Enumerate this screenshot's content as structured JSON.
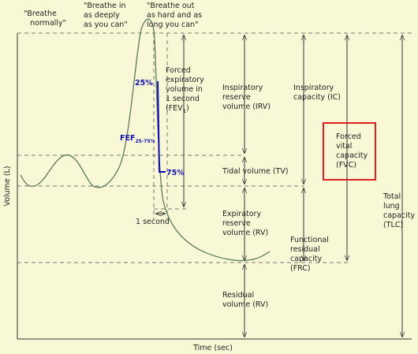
{
  "prompts": {
    "normal": [
      "\"Breathe",
      "normally\""
    ],
    "inhale": [
      "\"Breathe in",
      "as deeply",
      "as you can\""
    ],
    "exhale": [
      "\"Breathe out",
      "as hard and as",
      "long you can\""
    ]
  },
  "fev1": {
    "lines": [
      "Forced",
      "expiratory",
      "volume in",
      "1 second"
    ],
    "abbr": "(FEV",
    "sub": "1",
    "close": ")"
  },
  "fef": {
    "main": "FEF",
    "sub": "25-75%",
    "start": "25%",
    "end": "75%"
  },
  "one_second": "1 second",
  "volumes": {
    "irv": [
      "Inspiratory",
      "reserve",
      "volume (IRV)"
    ],
    "tv": [
      "Tidal volume (TV)"
    ],
    "erv": [
      "Expiratory",
      "reserve",
      "volume (RV)"
    ],
    "rv": [
      "Residual",
      "volume (RV)"
    ]
  },
  "capacities": {
    "ic": [
      "Inspiratory",
      "capacity (IC)"
    ],
    "frc": [
      "Functional",
      "residual",
      "capacity",
      "(FRC)"
    ],
    "fvc": [
      "Forced",
      "vital",
      "capacity",
      "(FVC)"
    ],
    "tlc": [
      "Total",
      "lung",
      "capacity",
      "(TLC)"
    ]
  },
  "axes": {
    "y": "Volume (L)",
    "x": "Time (sec)"
  }
}
